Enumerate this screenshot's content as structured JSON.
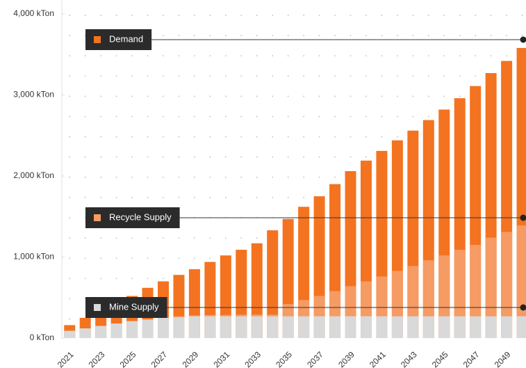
{
  "chart_data": {
    "type": "bar",
    "categories": [
      "2021",
      null,
      "2023",
      null,
      "2025",
      null,
      "2027",
      null,
      "2029",
      null,
      "2031",
      null,
      "2033",
      null,
      "2035",
      null,
      "2037",
      null,
      "2039",
      null,
      "2041",
      null,
      "2043",
      null,
      "2045",
      null,
      "2047",
      null,
      "2049",
      null
    ],
    "series": [
      {
        "name": "Demand",
        "color": "#f47320",
        "values": [
          160,
          250,
          330,
          420,
          520,
          620,
          700,
          780,
          850,
          940,
          1020,
          1090,
          1170,
          1330,
          1470,
          1620,
          1750,
          1900,
          2060,
          2190,
          2310,
          2440,
          2560,
          2690,
          2820,
          2960,
          3110,
          3270,
          3420,
          3580
        ]
      },
      {
        "name": "Recycle Supply",
        "color": "#f59b63",
        "values": [
          0,
          0,
          0,
          0,
          0,
          0,
          0,
          10,
          10,
          15,
          15,
          20,
          20,
          20,
          150,
          200,
          250,
          310,
          370,
          430,
          490,
          560,
          620,
          690,
          750,
          820,
          880,
          970,
          1040,
          1120
        ]
      },
      {
        "name": "Mine Supply",
        "color": "#d9d9d9",
        "values": [
          90,
          120,
          150,
          180,
          210,
          230,
          250,
          260,
          270,
          270,
          270,
          270,
          270,
          270,
          270,
          270,
          270,
          270,
          270,
          270,
          270,
          270,
          270,
          270,
          270,
          270,
          270,
          270,
          270,
          270
        ]
      }
    ],
    "ylim": [
      0,
      4000
    ],
    "yticks": [
      {
        "value": 0,
        "label": "0 kTon"
      },
      {
        "value": 1000,
        "label": "1,000 kTon"
      },
      {
        "value": 2000,
        "label": "2,000 kTon"
      },
      {
        "value": 3000,
        "label": "3,000 kTon"
      },
      {
        "value": 4000,
        "label": "4,000 kTon"
      }
    ],
    "grid": true
  }
}
